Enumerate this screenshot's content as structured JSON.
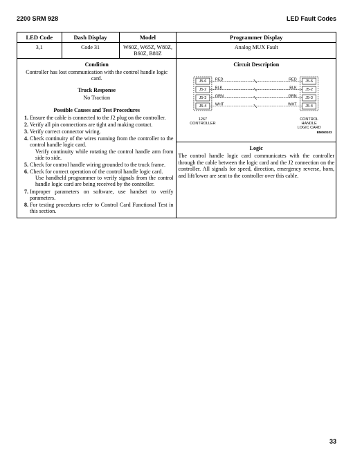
{
  "header": {
    "left": "2200 SRM 928",
    "right": "LED Fault Codes"
  },
  "table": {
    "headers": [
      "LED Code",
      "Dash Display",
      "Model",
      "Programmer Display"
    ],
    "row": {
      "led_code": "3,1",
      "dash_display": "Code 31",
      "model": "W60Z, W65Z, W80Z, B60Z, B80Z",
      "programmer_display": "Analog MUX Fault"
    }
  },
  "condition": {
    "title": "Condition",
    "text": "Controller has lost communication with the control handle logic card.",
    "truck_response_title": "Truck Response",
    "truck_response_text": "No Traction",
    "causes_title": "Possible Causes and Test Procedures",
    "procedures": [
      "Ensure the cable is connected to the J2 plug on the controller.",
      "Verify all pin connections are tight and making contact.",
      "Verify correct connector wiring.",
      "Check continuity of the wires running from the controller to the control handle logic card.",
      "Check for control handle wiring grounded to the truck frame.",
      "Check for correct operation of the control handle logic card.",
      "Improper parameters on software, use handset to verify parameters.",
      "For testing procedures refer to Control Card Functional Test in this section."
    ],
    "sub4": "Verify continuity while rotating the control handle arm from side to side.",
    "sub6": "Use handheld programmer to verify signals from the control handle logic card are being received by the controller."
  },
  "circuit": {
    "title": "Circuit Description"
  },
  "diagram": {
    "left_label": "1267 CONTROLLER",
    "right_label": "CONTROL HANDLE LOGIC CARD",
    "ref": "BM060103",
    "rows": [
      {
        "pin": "J5-6",
        "color": "RED"
      },
      {
        "pin": "J5-2",
        "color": "BLK"
      },
      {
        "pin": "J5-3",
        "color": "GRN"
      },
      {
        "pin": "J5-4",
        "color": "WHT"
      }
    ]
  },
  "logic": {
    "title": "Logic",
    "text": "The control handle logic card communicates with the controller through the cable between the logic card and the J2 connection on the controller. All signals for speed, direction, emergency reverse, horn, and lift/lower are sent to the controller over this cable."
  },
  "page_number": "33"
}
